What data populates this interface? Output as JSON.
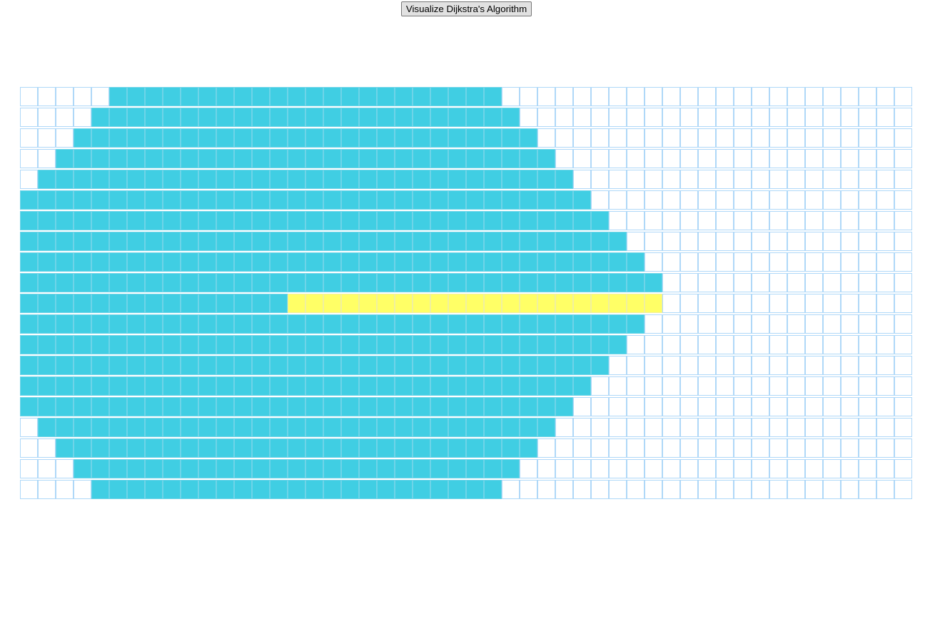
{
  "toolbar": {
    "visualize_label": "Visualize Dijkstra's Algorithm"
  },
  "grid": {
    "rows": 20,
    "cols": 50,
    "visited_ranges": [
      [
        5,
        26
      ],
      [
        4,
        27
      ],
      [
        3,
        28
      ],
      [
        2,
        29
      ],
      [
        1,
        30
      ],
      [
        0,
        31
      ],
      [
        0,
        32
      ],
      [
        0,
        33
      ],
      [
        0,
        34
      ],
      [
        0,
        35
      ],
      [
        0,
        14
      ],
      [
        0,
        34
      ],
      [
        0,
        33
      ],
      [
        0,
        32
      ],
      [
        0,
        31
      ],
      [
        0,
        30
      ],
      [
        1,
        29
      ],
      [
        2,
        28
      ],
      [
        3,
        27
      ],
      [
        4,
        26
      ]
    ],
    "path": {
      "row": 10,
      "from_col": 15,
      "to_col": 35
    }
  },
  "colors": {
    "visited": "#40cee3",
    "path": "#ffff66",
    "unvisited": "#ffffff",
    "border": "#afd8f8"
  }
}
